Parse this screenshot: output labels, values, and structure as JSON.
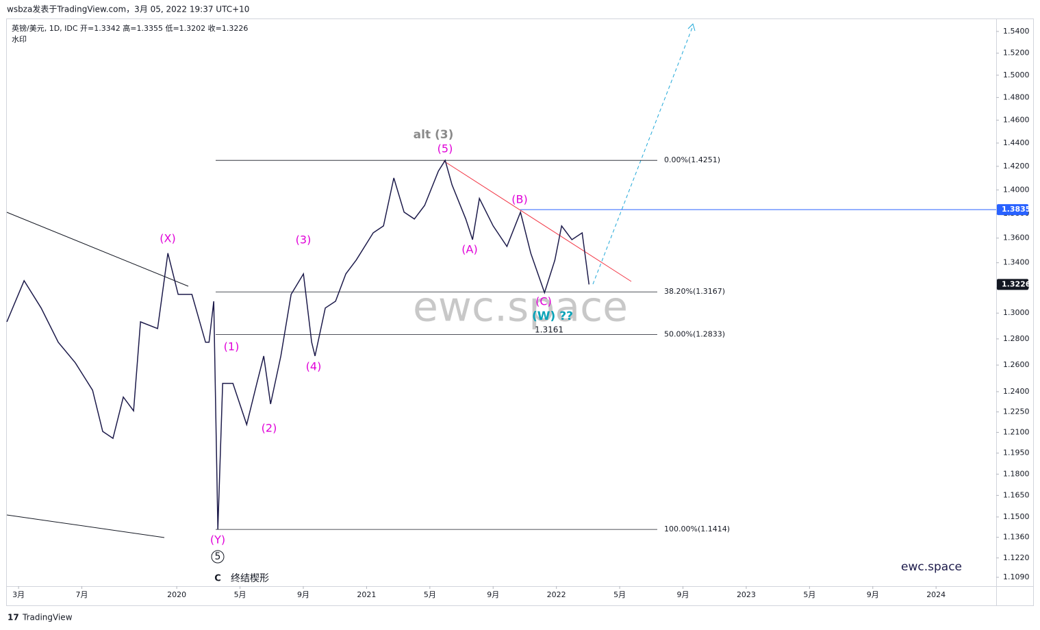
{
  "header": {
    "publish": "wsbza发表于TradingView.com，3月 05, 2022 19:37 UTC+10",
    "symbol": "英镑/美元, 1D, IDC  开=1.3342 高=1.3355 低=1.3202 收=1.3226",
    "watermark_label": "水印",
    "footer": "TradingView"
  },
  "chart_data": {
    "type": "line",
    "log_scale": true,
    "watermark": "ewc.space",
    "brand": "ewc.space",
    "x": [
      1.26,
      2.35,
      3.43,
      4.51,
      5.59,
      6.68,
      7.32,
      7.97,
      8.62,
      9.27,
      9.71,
      10.79,
      11.44,
      12.09,
      12.96,
      13.82,
      14.04,
      14.34,
      14.6,
      14.9,
      15.55,
      16.42,
      17.06,
      17.5,
      17.93,
      18.58,
      19.23,
      20.01,
      20.53,
      20.74,
      21.39,
      22.04,
      22.69,
      23.34,
      24.42,
      25.07,
      25.72,
      26.37,
      27.02,
      27.67,
      28.54,
      28.97,
      29.4,
      30.27,
      30.7,
      31.13,
      32.0,
      32.87,
      33.73,
      34.38,
      35.25,
      35.9,
      36.33,
      36.98,
      37.63,
      38.06
    ],
    "series": [
      {
        "name": "英镑/美元",
        "color": "#1c1a4a",
        "values": [
          1.2932,
          1.3256,
          1.304,
          1.2774,
          1.2617,
          1.2411,
          1.2107,
          1.2057,
          1.236,
          1.2258,
          1.2932,
          1.288,
          1.3477,
          1.3147,
          1.3147,
          1.2774,
          1.2774,
          1.3093,
          1.1414,
          1.2462,
          1.2462,
          1.2157,
          1.2462,
          1.2669,
          1.2308,
          1.2669,
          1.3147,
          1.331,
          1.2774,
          1.2669,
          1.304,
          1.3093,
          1.331,
          1.3421,
          1.3643,
          1.37,
          1.4101,
          1.3814,
          1.3757,
          1.387,
          1.4159,
          1.4251,
          1.4043,
          1.3757,
          1.3587,
          1.3928,
          1.37,
          1.3532,
          1.3814,
          1.3477,
          1.3161,
          1.3421,
          1.37,
          1.3587,
          1.3643,
          1.3226
        ]
      }
    ],
    "xlim": [
      1.26,
      63.8
    ],
    "xticks": [
      {
        "value": 2,
        "label": "3月"
      },
      {
        "value": 6,
        "label": "7月"
      },
      {
        "value": 12,
        "label": "2020"
      },
      {
        "value": 16,
        "label": "5月"
      },
      {
        "value": 20,
        "label": "9月"
      },
      {
        "value": 24,
        "label": "2021"
      },
      {
        "value": 28,
        "label": "5月"
      },
      {
        "value": 32,
        "label": "9月"
      },
      {
        "value": 36,
        "label": "2022"
      },
      {
        "value": 40,
        "label": "5月"
      },
      {
        "value": 44,
        "label": "9月"
      },
      {
        "value": 48,
        "label": "2023"
      },
      {
        "value": 52,
        "label": "5月"
      },
      {
        "value": 56,
        "label": "9月"
      },
      {
        "value": 60,
        "label": "2024"
      }
    ],
    "ylim": [
      1.1031,
      1.5514
    ],
    "yticks": [
      {
        "value": 1.109,
        "label": "1.1090"
      },
      {
        "value": 1.122,
        "label": "1.1220"
      },
      {
        "value": 1.136,
        "label": "1.1360"
      },
      {
        "value": 1.15,
        "label": "1.1500"
      },
      {
        "value": 1.165,
        "label": "1.1650"
      },
      {
        "value": 1.18,
        "label": "1.1800"
      },
      {
        "value": 1.195,
        "label": "1.1950"
      },
      {
        "value": 1.21,
        "label": "1.2100"
      },
      {
        "value": 1.225,
        "label": "1.2250"
      },
      {
        "value": 1.24,
        "label": "1.2400"
      },
      {
        "value": 1.26,
        "label": "1.2600"
      },
      {
        "value": 1.28,
        "label": "1.2800"
      },
      {
        "value": 1.3,
        "label": "1.3000"
      },
      {
        "value": 1.32,
        "label": "1.3200"
      },
      {
        "value": 1.34,
        "label": "1.3400"
      },
      {
        "value": 1.36,
        "label": "1.3600"
      },
      {
        "value": 1.38,
        "label": "1.3800"
      },
      {
        "value": 1.4,
        "label": "1.4000"
      },
      {
        "value": 1.42,
        "label": "1.4200"
      },
      {
        "value": 1.44,
        "label": "1.4400"
      },
      {
        "value": 1.46,
        "label": "1.4600"
      },
      {
        "value": 1.48,
        "label": "1.4800"
      },
      {
        "value": 1.5,
        "label": "1.5000"
      },
      {
        "value": 1.52,
        "label": "1.5200"
      },
      {
        "value": 1.54,
        "label": "1.5400"
      }
    ],
    "fib_levels": [
      {
        "value": 1.4251,
        "label": "0.00%(1.4251)"
      },
      {
        "value": 1.3167,
        "label": "38.20%(1.3167)"
      },
      {
        "value": 1.2833,
        "label": "50.00%(1.2833)"
      },
      {
        "value": 1.1414,
        "label": "100.00%(1.1414)"
      }
    ],
    "price_lines": [
      {
        "value": 1.3835,
        "label": "1.3835",
        "color": "#2962ff"
      },
      {
        "value": 1.3226,
        "label": "1.3226",
        "color": "#131722"
      }
    ],
    "annotations": [
      "alt (3)",
      "(5)",
      "(B)",
      "(A)",
      "(X)",
      "(3)",
      "(1)",
      "(4)",
      "(2)",
      "(C)",
      "(W) ??",
      "1.3161",
      "(Y)",
      "5",
      "C",
      "终结楔形"
    ]
  }
}
